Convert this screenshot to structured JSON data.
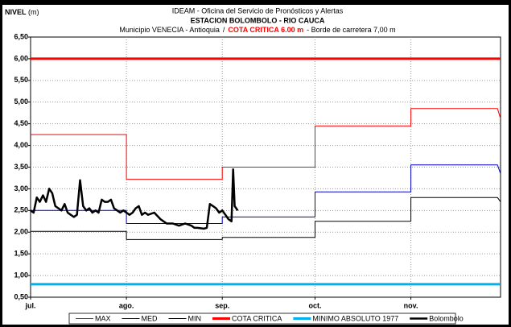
{
  "chart_data": {
    "type": "line",
    "y_label": "NIVEL",
    "y_unit": "(m)",
    "title_lines": [
      "IDEAM - Oficina del Servicio de Pronósticos y Alertas",
      "ESTACION BOLOMBOLO - RIO CAUCA"
    ],
    "subtitle_parts": [
      {
        "text": "Municipio VENECIA - Antioquia",
        "color": "#000000"
      },
      {
        "text": "/",
        "color": "#000000"
      },
      {
        "text": "COTA CRITICA 6.00 m",
        "color": "#ff0000"
      },
      {
        "text": "-  Borde de carretera 7,00 m",
        "color": "#000000"
      }
    ],
    "xlim": [
      0,
      152
    ],
    "xticks": [
      {
        "value": 0,
        "label": "jul."
      },
      {
        "value": 31,
        "label": "ago."
      },
      {
        "value": 62,
        "label": "sep."
      },
      {
        "value": 92,
        "label": "oct."
      },
      {
        "value": 123,
        "label": "nov."
      }
    ],
    "ylim": [
      0.5,
      6.5
    ],
    "yticks": [
      {
        "value": 0.5,
        "label": "0,50"
      },
      {
        "value": 1.0,
        "label": "1,00"
      },
      {
        "value": 1.5,
        "label": "1,50"
      },
      {
        "value": 2.0,
        "label": "2,00"
      },
      {
        "value": 2.5,
        "label": "2,50"
      },
      {
        "value": 3.0,
        "label": "3,00"
      },
      {
        "value": 3.5,
        "label": "3,50"
      },
      {
        "value": 4.0,
        "label": "4,00"
      },
      {
        "value": 4.5,
        "label": "4,50"
      },
      {
        "value": 5.0,
        "label": "5,00"
      },
      {
        "value": 5.5,
        "label": "5,50"
      },
      {
        "value": 6.0,
        "label": "6,00"
      },
      {
        "value": 6.5,
        "label": "6,50"
      }
    ],
    "grid": true,
    "legend": "bottom",
    "series": [
      {
        "name": "MAX",
        "color": "#ff0000",
        "width": 1,
        "x": [
          0,
          31,
          31,
          62,
          62,
          92,
          92,
          123,
          123,
          151,
          152
        ],
        "values": [
          4.25,
          4.25,
          3.22,
          3.22,
          3.5,
          3.5,
          4.45,
          4.45,
          4.85,
          4.85,
          4.62
        ]
      },
      {
        "name": "MED",
        "color": "#0000cc",
        "width": 1,
        "x": [
          0,
          31,
          31,
          62,
          62,
          92,
          92,
          123,
          123,
          151,
          152
        ],
        "values": [
          2.5,
          2.5,
          2.2,
          2.2,
          2.35,
          2.35,
          2.93,
          2.93,
          3.55,
          3.55,
          3.35
        ]
      },
      {
        "name": "MIN",
        "color": "#000000",
        "width": 1,
        "x": [
          0,
          31,
          31,
          62,
          62,
          92,
          92,
          123,
          123,
          151,
          152
        ],
        "values": [
          2.02,
          2.02,
          1.83,
          1.83,
          1.88,
          1.88,
          2.25,
          2.25,
          2.8,
          2.8,
          2.7
        ]
      },
      {
        "name": "COTA CRITICA",
        "color": "#ff0000",
        "width": 3,
        "x": [
          0,
          152
        ],
        "values": [
          6.0,
          6.0
        ]
      },
      {
        "name": "MINIMO ABSOLUTO 1977",
        "color": "#00b0f0",
        "width": 3,
        "x": [
          0,
          152
        ],
        "values": [
          0.8,
          0.8
        ]
      },
      {
        "name": "Bolombolo",
        "color": "#000000",
        "width": 2.5,
        "x": [
          0,
          1,
          2,
          3,
          4,
          5,
          6,
          7,
          8,
          9,
          10,
          11,
          12,
          13,
          14,
          15,
          16,
          17,
          18,
          19,
          20,
          21,
          22,
          23,
          24,
          25,
          26,
          27,
          28,
          29,
          30,
          31,
          32,
          33,
          34,
          35,
          36,
          37,
          38,
          40,
          42,
          43,
          44,
          46,
          48,
          50,
          52,
          53,
          54,
          56,
          57,
          58,
          59,
          60,
          61,
          62,
          63,
          64,
          65,
          65.5,
          66,
          66.5,
          67
        ],
        "values": [
          2.5,
          2.45,
          2.8,
          2.7,
          2.85,
          2.7,
          3.0,
          2.9,
          2.6,
          2.55,
          2.5,
          2.65,
          2.45,
          2.4,
          2.35,
          2.4,
          3.2,
          2.6,
          2.5,
          2.55,
          2.45,
          2.5,
          2.45,
          2.75,
          2.7,
          2.7,
          2.75,
          2.55,
          2.5,
          2.45,
          2.5,
          2.45,
          2.4,
          2.45,
          2.55,
          2.6,
          2.4,
          2.45,
          2.4,
          2.45,
          2.3,
          2.25,
          2.2,
          2.2,
          2.15,
          2.2,
          2.15,
          2.1,
          2.1,
          2.08,
          2.1,
          2.65,
          2.6,
          2.55,
          2.45,
          2.5,
          2.4,
          2.3,
          2.25,
          3.45,
          2.6,
          2.55,
          2.5
        ]
      }
    ]
  }
}
